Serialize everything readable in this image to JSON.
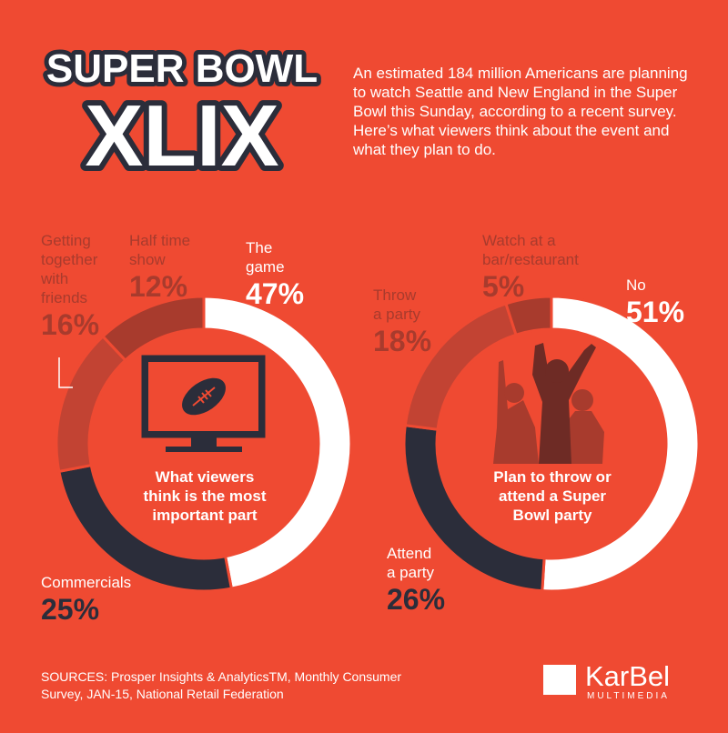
{
  "title": {
    "line1": "SUPER BOWL",
    "line2": "XLIX"
  },
  "intro": "An estimated 184 million Americans are planning to watch Seattle and New England in the Super Bowl this Sunday, according to a recent survey. Here’s what viewers think about the event and what they plan to do.",
  "chart_data": [
    {
      "type": "pie",
      "title": "What viewers think is the most important part",
      "slices": [
        {
          "label": "The game",
          "value": 47,
          "display": "47%",
          "color": "#ffffff"
        },
        {
          "label": "Commercials",
          "value": 25,
          "display": "25%",
          "color": "#2b2d3a"
        },
        {
          "label": "Getting together with friends",
          "value": 16,
          "display": "16%",
          "color": "#c24333"
        },
        {
          "label": "Half time show",
          "value": 12,
          "display": "12%",
          "color": "#a83b2d"
        }
      ]
    },
    {
      "type": "pie",
      "title": "Plan to throw or attend a Super Bowl party",
      "slices": [
        {
          "label": "No",
          "value": 51,
          "display": "51%",
          "color": "#ffffff"
        },
        {
          "label": "Attend a party",
          "value": 26,
          "display": "26%",
          "color": "#2b2d3a"
        },
        {
          "label": "Throw a party",
          "value": 18,
          "display": "18%",
          "color": "#c24333"
        },
        {
          "label": "Watch at a bar/restaurant",
          "value": 5,
          "display": "5%",
          "color": "#a83b2d"
        }
      ]
    }
  ],
  "labels1": {
    "game_name": "The\ngame",
    "game_pct": "47%",
    "half_name": "Half time\nshow",
    "half_pct": "12%",
    "friends_name": "Getting\ntogether\nwith\nfriends",
    "friends_pct": "16%",
    "commercials_name": "Commercials",
    "commercials_pct": "25%",
    "center": "What viewers\nthink is the most\nimportant part"
  },
  "labels2": {
    "no_name": "No",
    "no_pct": "51%",
    "bar_name": "Watch at a\nbar/restaurant",
    "bar_pct": "5%",
    "throw_name": "Throw\na party",
    "throw_pct": "18%",
    "attend_name": "Attend\na party",
    "attend_pct": "26%",
    "center": "Plan to throw or\nattend a Super\nBowl party"
  },
  "sources": "SOURCES: Prosper Insights & AnalyticsTM, Monthly Consumer Survey, JAN-15, National Retail Federation",
  "logo": {
    "name": "KarBel",
    "sub": "MULTIMEDIA"
  },
  "colors": {
    "background": "#ef4a32",
    "white": "#ffffff",
    "dark": "#2b2d3a",
    "mid": "#c24333",
    "dim": "#a83b2d"
  }
}
